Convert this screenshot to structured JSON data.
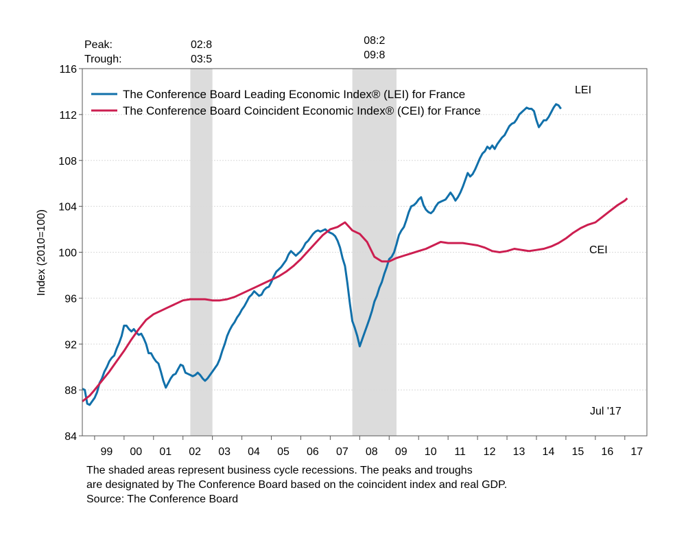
{
  "chart_data": {
    "type": "line",
    "ylabel": "Index (2010=100)",
    "ylim": [
      84,
      116
    ],
    "yticks": [
      84,
      88,
      92,
      96,
      100,
      104,
      108,
      112,
      116
    ],
    "xlim": [
      1998.583,
      2017.75
    ],
    "xticks": [
      {
        "label": "99",
        "x": 1999
      },
      {
        "label": "00",
        "x": 2000
      },
      {
        "label": "01",
        "x": 2001
      },
      {
        "label": "02",
        "x": 2002
      },
      {
        "label": "03",
        "x": 2003
      },
      {
        "label": "04",
        "x": 2004
      },
      {
        "label": "05",
        "x": 2005
      },
      {
        "label": "06",
        "x": 2006
      },
      {
        "label": "07",
        "x": 2007
      },
      {
        "label": "08",
        "x": 2008
      },
      {
        "label": "09",
        "x": 2009
      },
      {
        "label": "10",
        "x": 2010
      },
      {
        "label": "11",
        "x": 2011
      },
      {
        "label": "12",
        "x": 2012
      },
      {
        "label": "13",
        "x": 2013
      },
      {
        "label": "14",
        "x": 2014
      },
      {
        "label": "15",
        "x": 2015
      },
      {
        "label": "16",
        "x": 2016
      },
      {
        "label": "17",
        "x": 2017
      }
    ],
    "grid": true,
    "legend_position": "top-left",
    "recessions": [
      {
        "start": 2002.25,
        "end": 2003.0,
        "peak_label": "02:8",
        "trough_label": "03:5"
      },
      {
        "start": 2007.75,
        "end": 2009.25,
        "peak_label": "08:2",
        "trough_label": "09:8"
      }
    ],
    "cycle_header": {
      "peak": "Peak:",
      "trough": "Trough:"
    },
    "annotations": {
      "lei_label": "LEI",
      "cei_label": "CEI",
      "date_label": "Jul '17"
    },
    "series": [
      {
        "name": "The Conference Board Leading Economic Index® (LEI) for France",
        "color": "#1170aa",
        "points": [
          [
            1998.583,
            88.1
          ],
          [
            1998.667,
            88.0
          ],
          [
            1998.75,
            86.8
          ],
          [
            1998.833,
            86.7
          ],
          [
            1998.917,
            87.0
          ],
          [
            1999.0,
            87.3
          ],
          [
            1999.083,
            87.8
          ],
          [
            1999.167,
            88.6
          ],
          [
            1999.25,
            89.0
          ],
          [
            1999.333,
            89.6
          ],
          [
            1999.417,
            90.0
          ],
          [
            1999.5,
            90.5
          ],
          [
            1999.583,
            90.8
          ],
          [
            1999.667,
            91.0
          ],
          [
            1999.75,
            91.6
          ],
          [
            1999.833,
            92.1
          ],
          [
            1999.917,
            92.7
          ],
          [
            2000.0,
            93.6
          ],
          [
            2000.083,
            93.6
          ],
          [
            2000.167,
            93.3
          ],
          [
            2000.25,
            93.1
          ],
          [
            2000.333,
            93.3
          ],
          [
            2000.417,
            93.0
          ],
          [
            2000.5,
            92.8
          ],
          [
            2000.583,
            92.9
          ],
          [
            2000.667,
            92.5
          ],
          [
            2000.75,
            92.0
          ],
          [
            2000.833,
            91.2
          ],
          [
            2000.917,
            91.2
          ],
          [
            2001.0,
            90.8
          ],
          [
            2001.083,
            90.5
          ],
          [
            2001.167,
            90.3
          ],
          [
            2001.25,
            89.6
          ],
          [
            2001.333,
            88.8
          ],
          [
            2001.417,
            88.2
          ],
          [
            2001.5,
            88.6
          ],
          [
            2001.583,
            89.0
          ],
          [
            2001.667,
            89.3
          ],
          [
            2001.75,
            89.4
          ],
          [
            2001.833,
            89.8
          ],
          [
            2001.917,
            90.2
          ],
          [
            2002.0,
            90.1
          ],
          [
            2002.083,
            89.5
          ],
          [
            2002.167,
            89.4
          ],
          [
            2002.25,
            89.3
          ],
          [
            2002.333,
            89.2
          ],
          [
            2002.417,
            89.3
          ],
          [
            2002.5,
            89.5
          ],
          [
            2002.583,
            89.3
          ],
          [
            2002.667,
            89.0
          ],
          [
            2002.75,
            88.8
          ],
          [
            2002.833,
            89.0
          ],
          [
            2002.917,
            89.3
          ],
          [
            2003.0,
            89.6
          ],
          [
            2003.083,
            89.9
          ],
          [
            2003.167,
            90.2
          ],
          [
            2003.25,
            90.7
          ],
          [
            2003.333,
            91.4
          ],
          [
            2003.417,
            92.0
          ],
          [
            2003.5,
            92.7
          ],
          [
            2003.583,
            93.2
          ],
          [
            2003.667,
            93.6
          ],
          [
            2003.75,
            93.9
          ],
          [
            2003.833,
            94.3
          ],
          [
            2003.917,
            94.6
          ],
          [
            2004.0,
            95.0
          ],
          [
            2004.083,
            95.3
          ],
          [
            2004.167,
            95.7
          ],
          [
            2004.25,
            96.1
          ],
          [
            2004.333,
            96.3
          ],
          [
            2004.417,
            96.6
          ],
          [
            2004.5,
            96.4
          ],
          [
            2004.583,
            96.2
          ],
          [
            2004.667,
            96.3
          ],
          [
            2004.75,
            96.7
          ],
          [
            2004.833,
            96.9
          ],
          [
            2004.917,
            97.0
          ],
          [
            2005.0,
            97.4
          ],
          [
            2005.083,
            97.9
          ],
          [
            2005.167,
            98.3
          ],
          [
            2005.25,
            98.5
          ],
          [
            2005.333,
            98.7
          ],
          [
            2005.417,
            99.0
          ],
          [
            2005.5,
            99.3
          ],
          [
            2005.583,
            99.8
          ],
          [
            2005.667,
            100.1
          ],
          [
            2005.75,
            99.9
          ],
          [
            2005.833,
            99.7
          ],
          [
            2005.917,
            99.9
          ],
          [
            2006.0,
            100.1
          ],
          [
            2006.083,
            100.4
          ],
          [
            2006.167,
            100.8
          ],
          [
            2006.25,
            101.0
          ],
          [
            2006.333,
            101.3
          ],
          [
            2006.417,
            101.6
          ],
          [
            2006.5,
            101.8
          ],
          [
            2006.583,
            101.9
          ],
          [
            2006.667,
            101.8
          ],
          [
            2006.75,
            101.9
          ],
          [
            2006.833,
            102.0
          ],
          [
            2006.917,
            101.8
          ],
          [
            2007.0,
            101.7
          ],
          [
            2007.083,
            101.6
          ],
          [
            2007.167,
            101.4
          ],
          [
            2007.25,
            101.0
          ],
          [
            2007.333,
            100.4
          ],
          [
            2007.417,
            99.5
          ],
          [
            2007.5,
            98.8
          ],
          [
            2007.583,
            97.3
          ],
          [
            2007.667,
            95.5
          ],
          [
            2007.75,
            94.0
          ],
          [
            2007.833,
            93.4
          ],
          [
            2007.917,
            92.7
          ],
          [
            2008.0,
            91.8
          ],
          [
            2008.083,
            92.4
          ],
          [
            2008.167,
            93.0
          ],
          [
            2008.25,
            93.6
          ],
          [
            2008.333,
            94.2
          ],
          [
            2008.417,
            94.9
          ],
          [
            2008.5,
            95.7
          ],
          [
            2008.583,
            96.2
          ],
          [
            2008.667,
            96.9
          ],
          [
            2008.75,
            97.4
          ],
          [
            2008.833,
            98.1
          ],
          [
            2008.917,
            98.7
          ],
          [
            2009.0,
            99.4
          ],
          [
            2009.083,
            99.6
          ],
          [
            2009.167,
            100.0
          ],
          [
            2009.25,
            100.7
          ],
          [
            2009.333,
            101.5
          ],
          [
            2009.417,
            101.9
          ],
          [
            2009.5,
            102.2
          ],
          [
            2009.583,
            102.8
          ],
          [
            2009.667,
            103.5
          ],
          [
            2009.75,
            104.0
          ],
          [
            2009.833,
            104.1
          ],
          [
            2009.917,
            104.3
          ],
          [
            2010.0,
            104.6
          ],
          [
            2010.083,
            104.8
          ],
          [
            2010.167,
            104.1
          ],
          [
            2010.25,
            103.7
          ],
          [
            2010.333,
            103.5
          ],
          [
            2010.417,
            103.4
          ],
          [
            2010.5,
            103.6
          ],
          [
            2010.583,
            104.0
          ],
          [
            2010.667,
            104.3
          ],
          [
            2010.75,
            104.4
          ],
          [
            2010.833,
            104.5
          ],
          [
            2010.917,
            104.6
          ],
          [
            2011.0,
            104.9
          ],
          [
            2011.083,
            105.2
          ],
          [
            2011.167,
            104.9
          ],
          [
            2011.25,
            104.5
          ],
          [
            2011.333,
            104.8
          ],
          [
            2011.417,
            105.2
          ],
          [
            2011.5,
            105.7
          ],
          [
            2011.583,
            106.3
          ],
          [
            2011.667,
            106.9
          ],
          [
            2011.75,
            106.6
          ],
          [
            2011.833,
            106.8
          ],
          [
            2011.917,
            107.2
          ],
          [
            2012.0,
            107.7
          ],
          [
            2012.083,
            108.2
          ],
          [
            2012.167,
            108.6
          ],
          [
            2012.25,
            108.8
          ],
          [
            2012.333,
            109.2
          ],
          [
            2012.417,
            109.0
          ],
          [
            2012.5,
            109.3
          ],
          [
            2012.583,
            109.0
          ],
          [
            2012.667,
            109.4
          ],
          [
            2012.75,
            109.7
          ],
          [
            2012.833,
            110.0
          ],
          [
            2012.917,
            110.2
          ],
          [
            2013.0,
            110.6
          ],
          [
            2013.083,
            111.0
          ],
          [
            2013.167,
            111.2
          ],
          [
            2013.25,
            111.3
          ],
          [
            2013.333,
            111.6
          ],
          [
            2013.417,
            112.0
          ],
          [
            2013.5,
            112.2
          ],
          [
            2013.583,
            112.4
          ],
          [
            2013.667,
            112.6
          ],
          [
            2013.75,
            112.5
          ],
          [
            2013.833,
            112.5
          ],
          [
            2013.917,
            112.3
          ],
          [
            2014.0,
            111.5
          ],
          [
            2014.083,
            110.9
          ],
          [
            2014.167,
            111.2
          ],
          [
            2014.25,
            111.5
          ],
          [
            2014.333,
            111.5
          ],
          [
            2014.417,
            111.8
          ],
          [
            2014.5,
            112.2
          ],
          [
            2014.583,
            112.6
          ],
          [
            2014.667,
            112.9
          ],
          [
            2014.75,
            112.8
          ],
          [
            2014.833,
            112.5
          ]
        ]
      },
      {
        "name": "The Conference Board Coincident Economic Index® (CEI) for France",
        "color": "#cc1e50",
        "points": [
          [
            1998.583,
            87.0
          ],
          [
            1998.833,
            87.5
          ],
          [
            1999.0,
            88.0
          ],
          [
            1999.25,
            88.8
          ],
          [
            1999.5,
            89.6
          ],
          [
            1999.75,
            90.5
          ],
          [
            2000.0,
            91.4
          ],
          [
            2000.25,
            92.4
          ],
          [
            2000.5,
            93.3
          ],
          [
            2000.75,
            94.1
          ],
          [
            2001.0,
            94.6
          ],
          [
            2001.25,
            94.9
          ],
          [
            2001.5,
            95.2
          ],
          [
            2001.75,
            95.5
          ],
          [
            2002.0,
            95.8
          ],
          [
            2002.25,
            95.9
          ],
          [
            2002.5,
            95.9
          ],
          [
            2002.75,
            95.9
          ],
          [
            2003.0,
            95.8
          ],
          [
            2003.25,
            95.8
          ],
          [
            2003.5,
            95.9
          ],
          [
            2003.75,
            96.1
          ],
          [
            2004.0,
            96.4
          ],
          [
            2004.25,
            96.7
          ],
          [
            2004.5,
            97.0
          ],
          [
            2004.75,
            97.3
          ],
          [
            2005.0,
            97.6
          ],
          [
            2005.25,
            97.9
          ],
          [
            2005.5,
            98.3
          ],
          [
            2005.75,
            98.8
          ],
          [
            2006.0,
            99.4
          ],
          [
            2006.25,
            100.1
          ],
          [
            2006.5,
            100.8
          ],
          [
            2006.75,
            101.5
          ],
          [
            2007.0,
            102.0
          ],
          [
            2007.25,
            102.2
          ],
          [
            2007.5,
            102.6
          ],
          [
            2007.75,
            101.9
          ],
          [
            2008.0,
            101.6
          ],
          [
            2008.25,
            100.9
          ],
          [
            2008.5,
            99.6
          ],
          [
            2008.75,
            99.2
          ],
          [
            2009.0,
            99.2
          ],
          [
            2009.25,
            99.5
          ],
          [
            2009.5,
            99.7
          ],
          [
            2009.75,
            99.9
          ],
          [
            2010.0,
            100.1
          ],
          [
            2010.25,
            100.3
          ],
          [
            2010.5,
            100.6
          ],
          [
            2010.75,
            100.9
          ],
          [
            2011.0,
            100.8
          ],
          [
            2011.25,
            100.8
          ],
          [
            2011.5,
            100.8
          ],
          [
            2011.75,
            100.7
          ],
          [
            2012.0,
            100.6
          ],
          [
            2012.25,
            100.4
          ],
          [
            2012.5,
            100.1
          ],
          [
            2012.75,
            100.0
          ],
          [
            2013.0,
            100.1
          ],
          [
            2013.25,
            100.3
          ],
          [
            2013.5,
            100.2
          ],
          [
            2013.75,
            100.1
          ],
          [
            2014.0,
            100.2
          ],
          [
            2014.25,
            100.3
          ],
          [
            2014.5,
            100.5
          ],
          [
            2014.75,
            100.8
          ],
          [
            2015.0,
            101.2
          ],
          [
            2015.25,
            101.7
          ],
          [
            2015.5,
            102.1
          ],
          [
            2015.75,
            102.4
          ],
          [
            2016.0,
            102.6
          ],
          [
            2016.25,
            103.1
          ],
          [
            2016.5,
            103.6
          ],
          [
            2016.75,
            104.1
          ],
          [
            2017.0,
            104.5
          ],
          [
            2017.083,
            104.7
          ]
        ]
      }
    ]
  },
  "footnote": {
    "line1": "The shaded areas represent business cycle recessions. The peaks and troughs",
    "line2": "are designated by The Conference Board based on the coincident index and real GDP.",
    "line3": "Source: The Conference Board"
  }
}
